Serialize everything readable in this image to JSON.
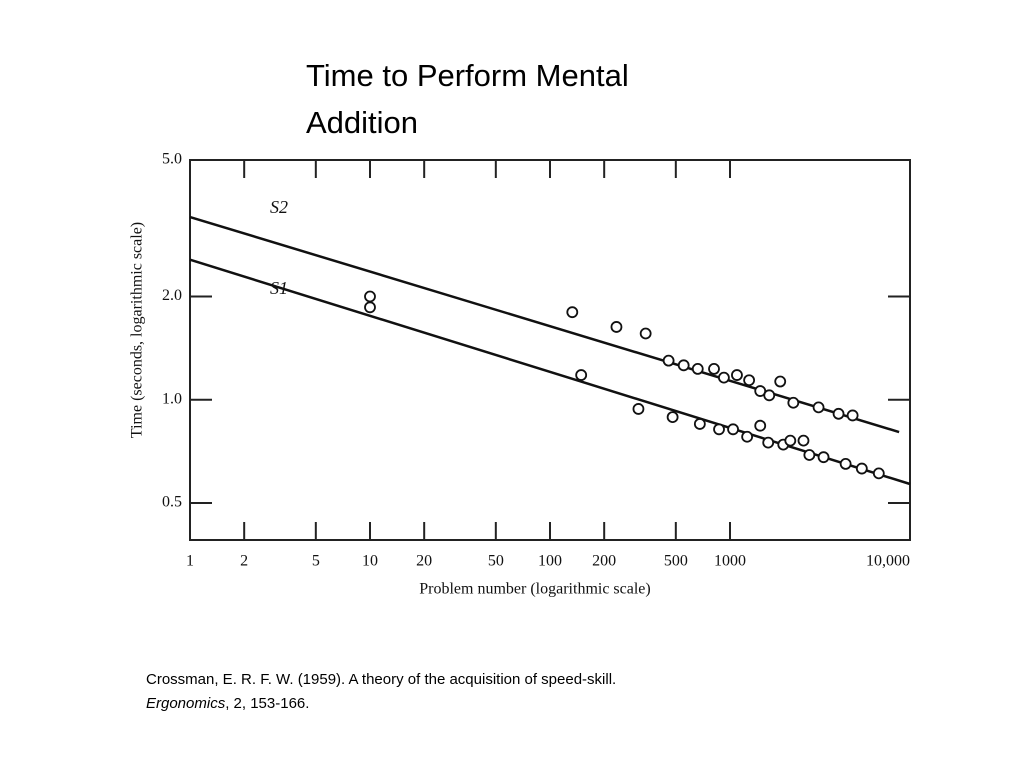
{
  "title": "Time to Perform Mental Addition",
  "citation": {
    "text": "Crossman, E. R. F. W.  (1959).  A theory of the acquisition of speed-skill. ",
    "journal": "Ergonomics",
    "rest": ", 2, 153-166."
  },
  "chart_data": {
    "type": "scatter",
    "x_label": "Problem number (logarithmic scale)",
    "y_label": "Time (seconds, logarithmic scale)",
    "xscale": "log",
    "yscale": "log",
    "xlim": [
      1,
      10000
    ],
    "ylim": [
      0.39,
      5
    ],
    "xticks": [
      1,
      2,
      5,
      10,
      20,
      50,
      100,
      200,
      500,
      {
        "value": 1000,
        "label": "1000"
      },
      {
        "value": 10000,
        "label": "10,000"
      }
    ],
    "yticks": [
      {
        "value": 5,
        "label": "5.0"
      },
      {
        "value": 2,
        "label": "2.0"
      },
      {
        "value": 1,
        "label": "1.0"
      },
      {
        "value": 0.5,
        "label": "0.5"
      }
    ],
    "series": [
      {
        "color": "#111",
        "x": [
          10,
          133,
          234,
          340,
          456,
          553,
          662,
          815,
          925,
          1093,
          1277,
          1472,
          1652,
          1901,
          2248,
          3105,
          4010,
          4800,
          10,
          149,
          310,
          480,
          680,
          869,
          1040,
          1245,
          1472,
          1630,
          1977,
          2163,
          2560,
          2760,
          3310,
          4390,
          5400,
          6710
        ],
        "values": [
          2.0,
          1.8,
          1.63,
          1.56,
          1.3,
          1.26,
          1.23,
          1.23,
          1.16,
          1.18,
          1.14,
          1.06,
          1.03,
          1.13,
          0.98,
          0.95,
          0.91,
          0.9,
          1.86,
          1.18,
          0.94,
          0.89,
          0.85,
          0.82,
          0.82,
          0.78,
          0.84,
          0.75,
          0.74,
          0.76,
          0.76,
          0.69,
          0.68,
          0.65,
          0.63,
          0.61
        ]
      }
    ],
    "lines": [
      {
        "name": "S2",
        "x": [
          1,
          8700
        ],
        "values": [
          3.41,
          0.805
        ]
      },
      {
        "name": "S1",
        "x": [
          1,
          10000
        ],
        "values": [
          2.56,
          0.568
        ]
      }
    ]
  }
}
